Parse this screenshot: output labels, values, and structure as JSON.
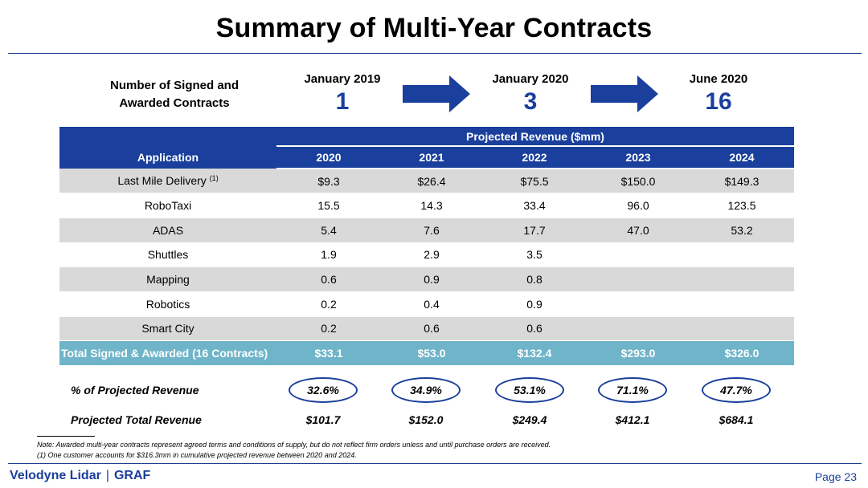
{
  "title": "Summary of Multi-Year Contracts",
  "contracts": {
    "label_line1": "Number of Signed and",
    "label_line2": "Awarded Contracts",
    "periods": [
      {
        "date": "January 2019",
        "count": "1"
      },
      {
        "date": "January 2020",
        "count": "3"
      },
      {
        "date": "June 2020",
        "count": "16"
      }
    ]
  },
  "table": {
    "revenue_header": "Projected Revenue ($mm)",
    "application_header": "Application",
    "years": [
      "2020",
      "2021",
      "2022",
      "2023",
      "2024"
    ],
    "rows": [
      {
        "app": "Last Mile Delivery",
        "note": "(1)",
        "values": [
          "$9.3",
          "$26.4",
          "$75.5",
          "$150.0",
          "$149.3"
        ]
      },
      {
        "app": "RoboTaxi",
        "values": [
          "15.5",
          "14.3",
          "33.4",
          "96.0",
          "123.5"
        ]
      },
      {
        "app": "ADAS",
        "values": [
          "5.4",
          "7.6",
          "17.7",
          "47.0",
          "53.2"
        ]
      },
      {
        "app": "Shuttles",
        "values": [
          "1.9",
          "2.9",
          "3.5",
          "",
          ""
        ]
      },
      {
        "app": "Mapping",
        "values": [
          "0.6",
          "0.9",
          "0.8",
          "",
          ""
        ]
      },
      {
        "app": "Robotics",
        "values": [
          "0.2",
          "0.4",
          "0.9",
          "",
          ""
        ]
      },
      {
        "app": "Smart City",
        "values": [
          "0.2",
          "0.6",
          "0.6",
          "",
          ""
        ]
      }
    ],
    "total": {
      "label": "Total Signed & Awarded (16 Contracts)",
      "values": [
        "$33.1",
        "$53.0",
        "$132.4",
        "$293.0",
        "$326.0"
      ]
    }
  },
  "pct_of_revenue": {
    "label": "% of Projected Revenue",
    "values": [
      "32.6%",
      "34.9%",
      "53.1%",
      "71.1%",
      "47.7%"
    ]
  },
  "projected_total": {
    "label": "Projected Total Revenue",
    "values": [
      "$101.7",
      "$152.0",
      "$249.4",
      "$412.1",
      "$684.1"
    ]
  },
  "notes": {
    "note": "Note: Awarded multi-year contracts represent agreed terms and conditions of supply, but do not reflect firm orders unless and until purchase orders are received.",
    "footnote": "(1)   One customer accounts for $316.3mm in cumulative projected revenue between 2020 and 2024."
  },
  "footer": {
    "brand": "Velodyne Lidar",
    "separator": "|",
    "partner": "GRAF",
    "page": "Page 23"
  },
  "colors": {
    "accent_blue": "#1a3f9c",
    "total_row": "#6fb4c8",
    "shade_row": "#d9d9d9"
  }
}
